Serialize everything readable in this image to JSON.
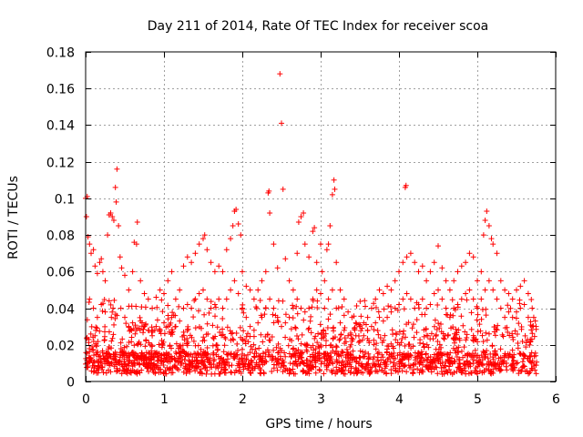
{
  "chart_data": {
    "type": "scatter",
    "title": "Day 211 of 2014, Rate Of TEC Index for receiver scoa",
    "xlabel": "GPS time / hours",
    "ylabel": "ROTI / TECUs",
    "xlim": [
      0,
      6
    ],
    "ylim": [
      0,
      0.18
    ],
    "x_ticks": [
      0,
      1,
      2,
      3,
      4,
      5,
      6
    ],
    "y_ticks": [
      0,
      0.02,
      0.04,
      0.06,
      0.08,
      0.1,
      0.12,
      0.14,
      0.16,
      0.18
    ],
    "x_tick_labels": [
      "0",
      "1",
      "2",
      "3",
      "4",
      "5",
      "6"
    ],
    "y_tick_labels": [
      "0",
      "0.02",
      "0.04",
      "0.06",
      "0.08",
      "0.1",
      "0.12",
      "0.14",
      "0.16",
      "0.18"
    ],
    "grid": true,
    "marker": "+",
    "color": "#ff0000",
    "series": [
      {
        "name": "ROTI",
        "points": [
          [
            0.0,
            0.1
          ],
          [
            0.02,
            0.101
          ],
          [
            0.01,
            0.09
          ],
          [
            0.03,
            0.079
          ],
          [
            0.05,
            0.075
          ],
          [
            0.07,
            0.07
          ],
          [
            0.1,
            0.072
          ],
          [
            0.12,
            0.063
          ],
          [
            0.15,
            0.059
          ],
          [
            0.18,
            0.065
          ],
          [
            0.2,
            0.067
          ],
          [
            0.22,
            0.06
          ],
          [
            0.25,
            0.055
          ],
          [
            0.28,
            0.08
          ],
          [
            0.3,
            0.091
          ],
          [
            0.32,
            0.092
          ],
          [
            0.34,
            0.09
          ],
          [
            0.36,
            0.088
          ],
          [
            0.38,
            0.106
          ],
          [
            0.39,
            0.098
          ],
          [
            0.4,
            0.116
          ],
          [
            0.42,
            0.085
          ],
          [
            0.44,
            0.068
          ],
          [
            0.46,
            0.062
          ],
          [
            0.5,
            0.058
          ],
          [
            0.55,
            0.05
          ],
          [
            0.6,
            0.06
          ],
          [
            0.62,
            0.076
          ],
          [
            0.65,
            0.075
          ],
          [
            0.66,
            0.087
          ],
          [
            0.7,
            0.055
          ],
          [
            0.75,
            0.048
          ],
          [
            0.8,
            0.045
          ],
          [
            0.85,
            0.04
          ],
          [
            0.9,
            0.046
          ],
          [
            0.95,
            0.05
          ],
          [
            1.0,
            0.048
          ],
          [
            1.05,
            0.055
          ],
          [
            1.1,
            0.06
          ],
          [
            1.15,
            0.045
          ],
          [
            1.2,
            0.05
          ],
          [
            1.25,
            0.063
          ],
          [
            1.3,
            0.068
          ],
          [
            1.35,
            0.065
          ],
          [
            1.4,
            0.07
          ],
          [
            1.45,
            0.075
          ],
          [
            1.5,
            0.078
          ],
          [
            1.52,
            0.08
          ],
          [
            1.55,
            0.072
          ],
          [
            1.6,
            0.065
          ],
          [
            1.65,
            0.06
          ],
          [
            1.7,
            0.063
          ],
          [
            1.75,
            0.06
          ],
          [
            1.8,
            0.072
          ],
          [
            1.85,
            0.078
          ],
          [
            1.88,
            0.085
          ],
          [
            1.9,
            0.093
          ],
          [
            1.92,
            0.094
          ],
          [
            1.95,
            0.086
          ],
          [
            1.98,
            0.08
          ],
          [
            2.0,
            0.06
          ],
          [
            2.05,
            0.052
          ],
          [
            2.1,
            0.05
          ],
          [
            2.15,
            0.045
          ],
          [
            2.2,
            0.05
          ],
          [
            2.25,
            0.055
          ],
          [
            2.3,
            0.06
          ],
          [
            2.33,
            0.103
          ],
          [
            2.34,
            0.104
          ],
          [
            2.35,
            0.092
          ],
          [
            2.4,
            0.075
          ],
          [
            2.45,
            0.062
          ],
          [
            2.48,
            0.168
          ],
          [
            2.5,
            0.141
          ],
          [
            2.52,
            0.105
          ],
          [
            2.55,
            0.067
          ],
          [
            2.6,
            0.055
          ],
          [
            2.65,
            0.05
          ],
          [
            2.7,
            0.07
          ],
          [
            2.72,
            0.087
          ],
          [
            2.75,
            0.09
          ],
          [
            2.78,
            0.092
          ],
          [
            2.8,
            0.075
          ],
          [
            2.85,
            0.068
          ],
          [
            2.9,
            0.082
          ],
          [
            2.92,
            0.084
          ],
          [
            2.95,
            0.065
          ],
          [
            3.0,
            0.075
          ],
          [
            3.02,
            0.06
          ],
          [
            3.05,
            0.055
          ],
          [
            3.08,
            0.072
          ],
          [
            3.1,
            0.075
          ],
          [
            3.12,
            0.085
          ],
          [
            3.15,
            0.102
          ],
          [
            3.17,
            0.11
          ],
          [
            3.18,
            0.105
          ],
          [
            3.2,
            0.065
          ],
          [
            3.25,
            0.05
          ],
          [
            3.3,
            0.045
          ],
          [
            3.35,
            0.038
          ],
          [
            3.4,
            0.035
          ],
          [
            3.45,
            0.032
          ],
          [
            3.5,
            0.03
          ],
          [
            3.55,
            0.032
          ],
          [
            3.6,
            0.035
          ],
          [
            3.65,
            0.04
          ],
          [
            3.7,
            0.045
          ],
          [
            3.75,
            0.05
          ],
          [
            3.8,
            0.048
          ],
          [
            3.85,
            0.052
          ],
          [
            3.9,
            0.05
          ],
          [
            3.95,
            0.055
          ],
          [
            4.0,
            0.06
          ],
          [
            4.05,
            0.065
          ],
          [
            4.08,
            0.106
          ],
          [
            4.09,
            0.107
          ],
          [
            4.1,
            0.068
          ],
          [
            4.15,
            0.07
          ],
          [
            4.2,
            0.065
          ],
          [
            4.25,
            0.06
          ],
          [
            4.3,
            0.063
          ],
          [
            4.35,
            0.055
          ],
          [
            4.4,
            0.06
          ],
          [
            4.45,
            0.065
          ],
          [
            4.5,
            0.074
          ],
          [
            4.55,
            0.062
          ],
          [
            4.6,
            0.055
          ],
          [
            4.65,
            0.05
          ],
          [
            4.7,
            0.055
          ],
          [
            4.75,
            0.06
          ],
          [
            4.8,
            0.063
          ],
          [
            4.85,
            0.065
          ],
          [
            4.9,
            0.07
          ],
          [
            4.95,
            0.068
          ],
          [
            5.0,
            0.055
          ],
          [
            5.05,
            0.06
          ],
          [
            5.08,
            0.08
          ],
          [
            5.1,
            0.088
          ],
          [
            5.12,
            0.093
          ],
          [
            5.15,
            0.085
          ],
          [
            5.18,
            0.078
          ],
          [
            5.2,
            0.075
          ],
          [
            5.25,
            0.07
          ],
          [
            5.3,
            0.055
          ],
          [
            5.35,
            0.05
          ],
          [
            5.4,
            0.048
          ],
          [
            5.45,
            0.045
          ],
          [
            5.5,
            0.05
          ],
          [
            5.55,
            0.052
          ],
          [
            5.6,
            0.055
          ],
          [
            5.65,
            0.048
          ],
          [
            5.7,
            0.04
          ],
          [
            5.72,
            0.035
          ],
          [
            5.75,
            0.03
          ],
          [
            0.05,
            0.045
          ],
          [
            0.1,
            0.04
          ],
          [
            0.15,
            0.035
          ],
          [
            0.2,
            0.042
          ],
          [
            0.25,
            0.038
          ],
          [
            0.3,
            0.044
          ],
          [
            0.35,
            0.04
          ],
          [
            0.4,
            0.036
          ],
          [
            0.45,
            0.04
          ],
          [
            0.5,
            0.035
          ],
          [
            0.55,
            0.03
          ],
          [
            0.6,
            0.032
          ],
          [
            0.65,
            0.028
          ],
          [
            0.7,
            0.033
          ],
          [
            0.75,
            0.03
          ],
          [
            0.8,
            0.028
          ],
          [
            0.85,
            0.025
          ],
          [
            0.9,
            0.03
          ],
          [
            0.95,
            0.028
          ],
          [
            1.0,
            0.032
          ],
          [
            1.05,
            0.03
          ],
          [
            1.1,
            0.035
          ],
          [
            1.15,
            0.03
          ],
          [
            1.2,
            0.033
          ],
          [
            1.25,
            0.04
          ],
          [
            1.3,
            0.042
          ],
          [
            1.35,
            0.04
          ],
          [
            1.4,
            0.045
          ],
          [
            1.45,
            0.048
          ],
          [
            1.5,
            0.05
          ],
          [
            1.55,
            0.045
          ],
          [
            1.6,
            0.04
          ],
          [
            1.65,
            0.042
          ],
          [
            1.7,
            0.045
          ],
          [
            1.75,
            0.04
          ],
          [
            1.8,
            0.045
          ],
          [
            1.85,
            0.05
          ],
          [
            1.9,
            0.055
          ],
          [
            1.95,
            0.048
          ],
          [
            2.0,
            0.04
          ],
          [
            2.05,
            0.035
          ],
          [
            2.1,
            0.03
          ],
          [
            2.15,
            0.028
          ],
          [
            2.2,
            0.032
          ],
          [
            2.25,
            0.035
          ],
          [
            2.3,
            0.04
          ],
          [
            2.35,
            0.045
          ],
          [
            2.4,
            0.04
          ],
          [
            2.45,
            0.035
          ],
          [
            2.5,
            0.03
          ],
          [
            2.55,
            0.032
          ],
          [
            2.6,
            0.035
          ],
          [
            2.65,
            0.04
          ],
          [
            2.7,
            0.045
          ],
          [
            2.75,
            0.04
          ],
          [
            2.8,
            0.038
          ],
          [
            2.85,
            0.04
          ],
          [
            2.9,
            0.045
          ],
          [
            2.95,
            0.05
          ],
          [
            3.0,
            0.048
          ],
          [
            3.05,
            0.04
          ],
          [
            3.1,
            0.045
          ],
          [
            3.15,
            0.05
          ],
          [
            3.2,
            0.04
          ],
          [
            3.25,
            0.032
          ],
          [
            3.3,
            0.028
          ],
          [
            3.35,
            0.025
          ],
          [
            3.4,
            0.022
          ],
          [
            3.45,
            0.025
          ],
          [
            3.5,
            0.022
          ],
          [
            3.55,
            0.025
          ],
          [
            3.6,
            0.028
          ],
          [
            3.65,
            0.03
          ],
          [
            3.7,
            0.032
          ],
          [
            3.75,
            0.035
          ],
          [
            3.8,
            0.033
          ],
          [
            3.85,
            0.035
          ],
          [
            3.9,
            0.038
          ],
          [
            3.95,
            0.04
          ],
          [
            4.0,
            0.042
          ],
          [
            4.05,
            0.045
          ],
          [
            4.1,
            0.048
          ],
          [
            4.15,
            0.045
          ],
          [
            4.2,
            0.04
          ],
          [
            4.25,
            0.042
          ],
          [
            4.3,
            0.045
          ],
          [
            4.35,
            0.04
          ],
          [
            4.4,
            0.042
          ],
          [
            4.45,
            0.048
          ],
          [
            4.5,
            0.05
          ],
          [
            4.55,
            0.045
          ],
          [
            4.6,
            0.04
          ],
          [
            4.65,
            0.035
          ],
          [
            4.7,
            0.04
          ],
          [
            4.75,
            0.042
          ],
          [
            4.8,
            0.045
          ],
          [
            4.85,
            0.048
          ],
          [
            4.9,
            0.05
          ],
          [
            4.95,
            0.045
          ],
          [
            5.0,
            0.04
          ],
          [
            5.05,
            0.045
          ],
          [
            5.1,
            0.05
          ],
          [
            5.15,
            0.055
          ],
          [
            5.2,
            0.05
          ],
          [
            5.25,
            0.045
          ],
          [
            5.3,
            0.04
          ],
          [
            5.35,
            0.035
          ],
          [
            5.4,
            0.038
          ],
          [
            5.45,
            0.035
          ],
          [
            5.5,
            0.038
          ],
          [
            5.55,
            0.04
          ],
          [
            5.6,
            0.042
          ],
          [
            5.65,
            0.035
          ],
          [
            5.7,
            0.03
          ],
          [
            5.74,
            0.033
          ]
        ]
      }
    ]
  }
}
